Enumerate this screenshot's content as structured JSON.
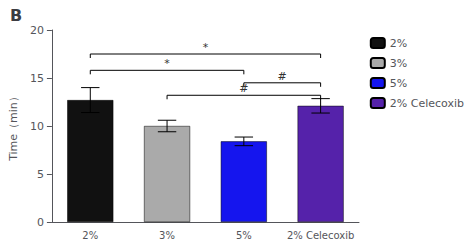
{
  "chart_data": {
    "type": "bar",
    "title": "B",
    "categories": [
      "2%",
      "3%",
      "5%",
      "2% Celecoxib"
    ],
    "values": [
      12.7,
      10.0,
      8.4,
      12.1
    ],
    "errors": [
      1.3,
      0.6,
      0.45,
      0.75
    ],
    "colors": [
      "#111111",
      "#aaaaaa",
      "#1515ee",
      "#5522aa"
    ],
    "ylabel": "Time（min）",
    "ylim": [
      0,
      20
    ],
    "yticks": [
      0,
      5,
      10,
      15,
      20
    ],
    "grid": false,
    "legend": "right",
    "annotations": [
      {
        "text": "*",
        "x1": "2%",
        "x2": "5%",
        "y": 15.8
      },
      {
        "text": "*",
        "x1": "2%",
        "x2": "2% Celecoxib",
        "y": 17.5
      },
      {
        "text": "#",
        "x1": "5%",
        "x2": "2% Celecoxib",
        "y": 14.5
      },
      {
        "text": "#",
        "x1": "3%",
        "x2": "2% Celecoxib",
        "y": 13.2
      }
    ]
  }
}
